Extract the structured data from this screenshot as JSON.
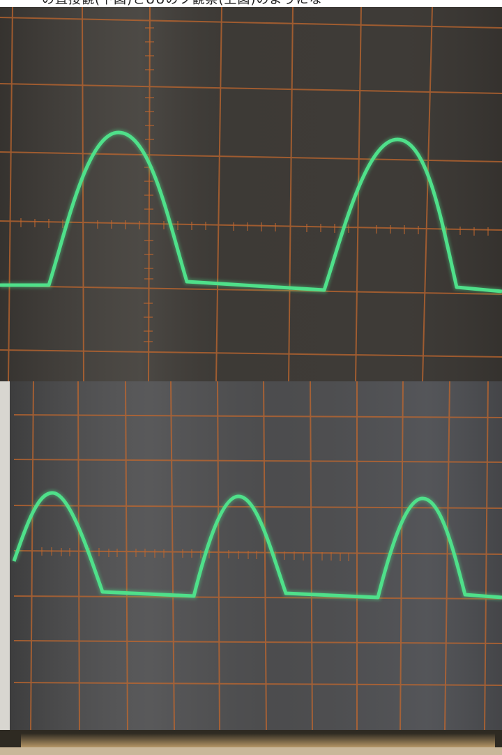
{
  "caption": {
    "text": "の直接観(下図)とUUのフ観察(上図)のようにな"
  },
  "colors": {
    "trace": "#4fe08a",
    "graticule": "#c0672e",
    "screen_top": "#3d3a36",
    "screen_bottom": "#4b4b4c",
    "bezel_glow": "#ffd08a"
  },
  "panels": [
    {
      "id": "top",
      "label": "half-wave rectified trace",
      "peaks": 2
    },
    {
      "id": "bottom",
      "label": "half-wave rectified trace",
      "peaks": 3
    }
  ]
}
